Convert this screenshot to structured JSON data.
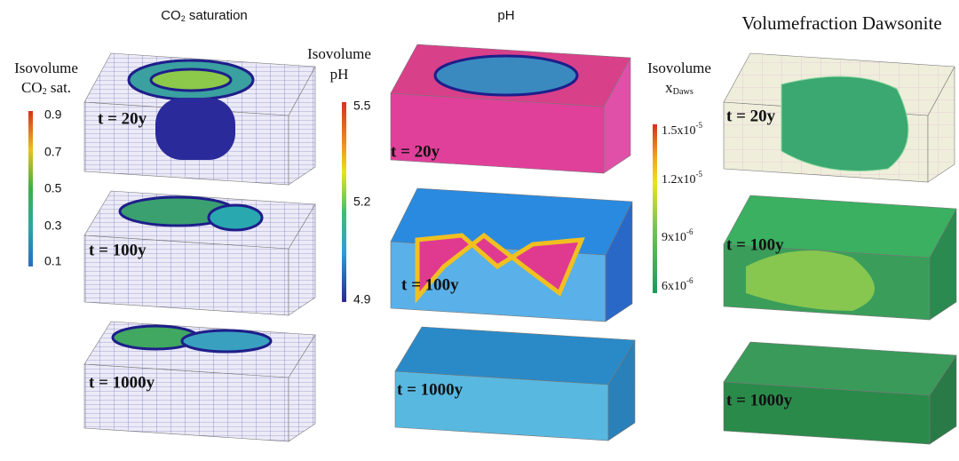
{
  "panels": [
    {
      "title": [
        "CO",
        "2",
        " saturation"
      ],
      "legend": {
        "line1": "Isovolume",
        "line2": [
          "CO",
          "2",
          " sat."
        ],
        "ticks": [
          "0.9",
          "0.7",
          "0.5",
          "0.3",
          "0.1"
        ]
      },
      "times": [
        "t = 20y",
        "t = 100y",
        "t = 1000y"
      ]
    },
    {
      "title": [
        "pH"
      ],
      "legend": {
        "line1": "Isovolume",
        "line2": [
          "pH"
        ],
        "ticks": [
          "5.5",
          "5.2",
          "4.9"
        ]
      },
      "times": [
        "t = 20y",
        "t = 100y",
        "t = 1000y"
      ]
    },
    {
      "title": [
        "Volumefraction Dawsonite"
      ],
      "legend": {
        "line1": "Isovolume",
        "line2": [
          "x",
          "Daws"
        ],
        "ticks": [
          [
            "1.5x10",
            "-5"
          ],
          [
            "1.2x10",
            "-5"
          ],
          [
            "9x10",
            "-6"
          ],
          [
            "6x10",
            "-6"
          ]
        ]
      },
      "times": [
        "t = 20y",
        "t = 100y",
        "t = 1000y"
      ]
    }
  ]
}
